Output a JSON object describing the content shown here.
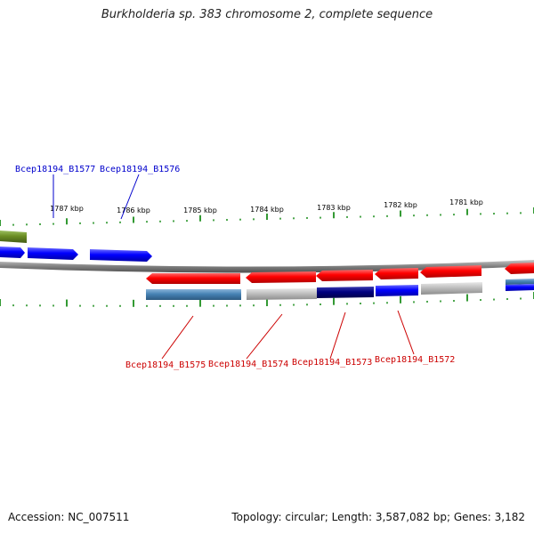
{
  "title": "Burkholderia sp. 383 chromosome 2, complete sequence",
  "accession_text": "Accession: NC_007511",
  "topology_text": "Topology: circular; Length: 3,587,082 bp; Genes: 3,182",
  "scale": {
    "tick_labels": [
      "1787 kbp",
      "1786 kbp",
      "1785 kbp",
      "1784 kbp",
      "1783 kbp",
      "1782 kbp",
      "1781 kbp"
    ]
  },
  "genes_top": [
    {
      "name": "Bcep18194_B1577",
      "color": "#0000cc"
    },
    {
      "name": "Bcep18194_B1576",
      "color": "#0000cc"
    }
  ],
  "genes_bottom": [
    {
      "name": "Bcep18194_B1575",
      "color": "#cc0000"
    },
    {
      "name": "Bcep18194_B1574",
      "color": "#cc0000"
    },
    {
      "name": "Bcep18194_B1573",
      "color": "#cc0000"
    },
    {
      "name": "Bcep18194_B1572",
      "color": "#cc0000"
    }
  ],
  "colors": {
    "forward_strand": "#0000ff",
    "reverse_strand": "#ff0000",
    "backbone": "#808080",
    "ticks": "#008000",
    "steelblue": "#4682b4",
    "grey": "#bebebe",
    "navy": "#000080",
    "olive": "#6b8e23"
  }
}
